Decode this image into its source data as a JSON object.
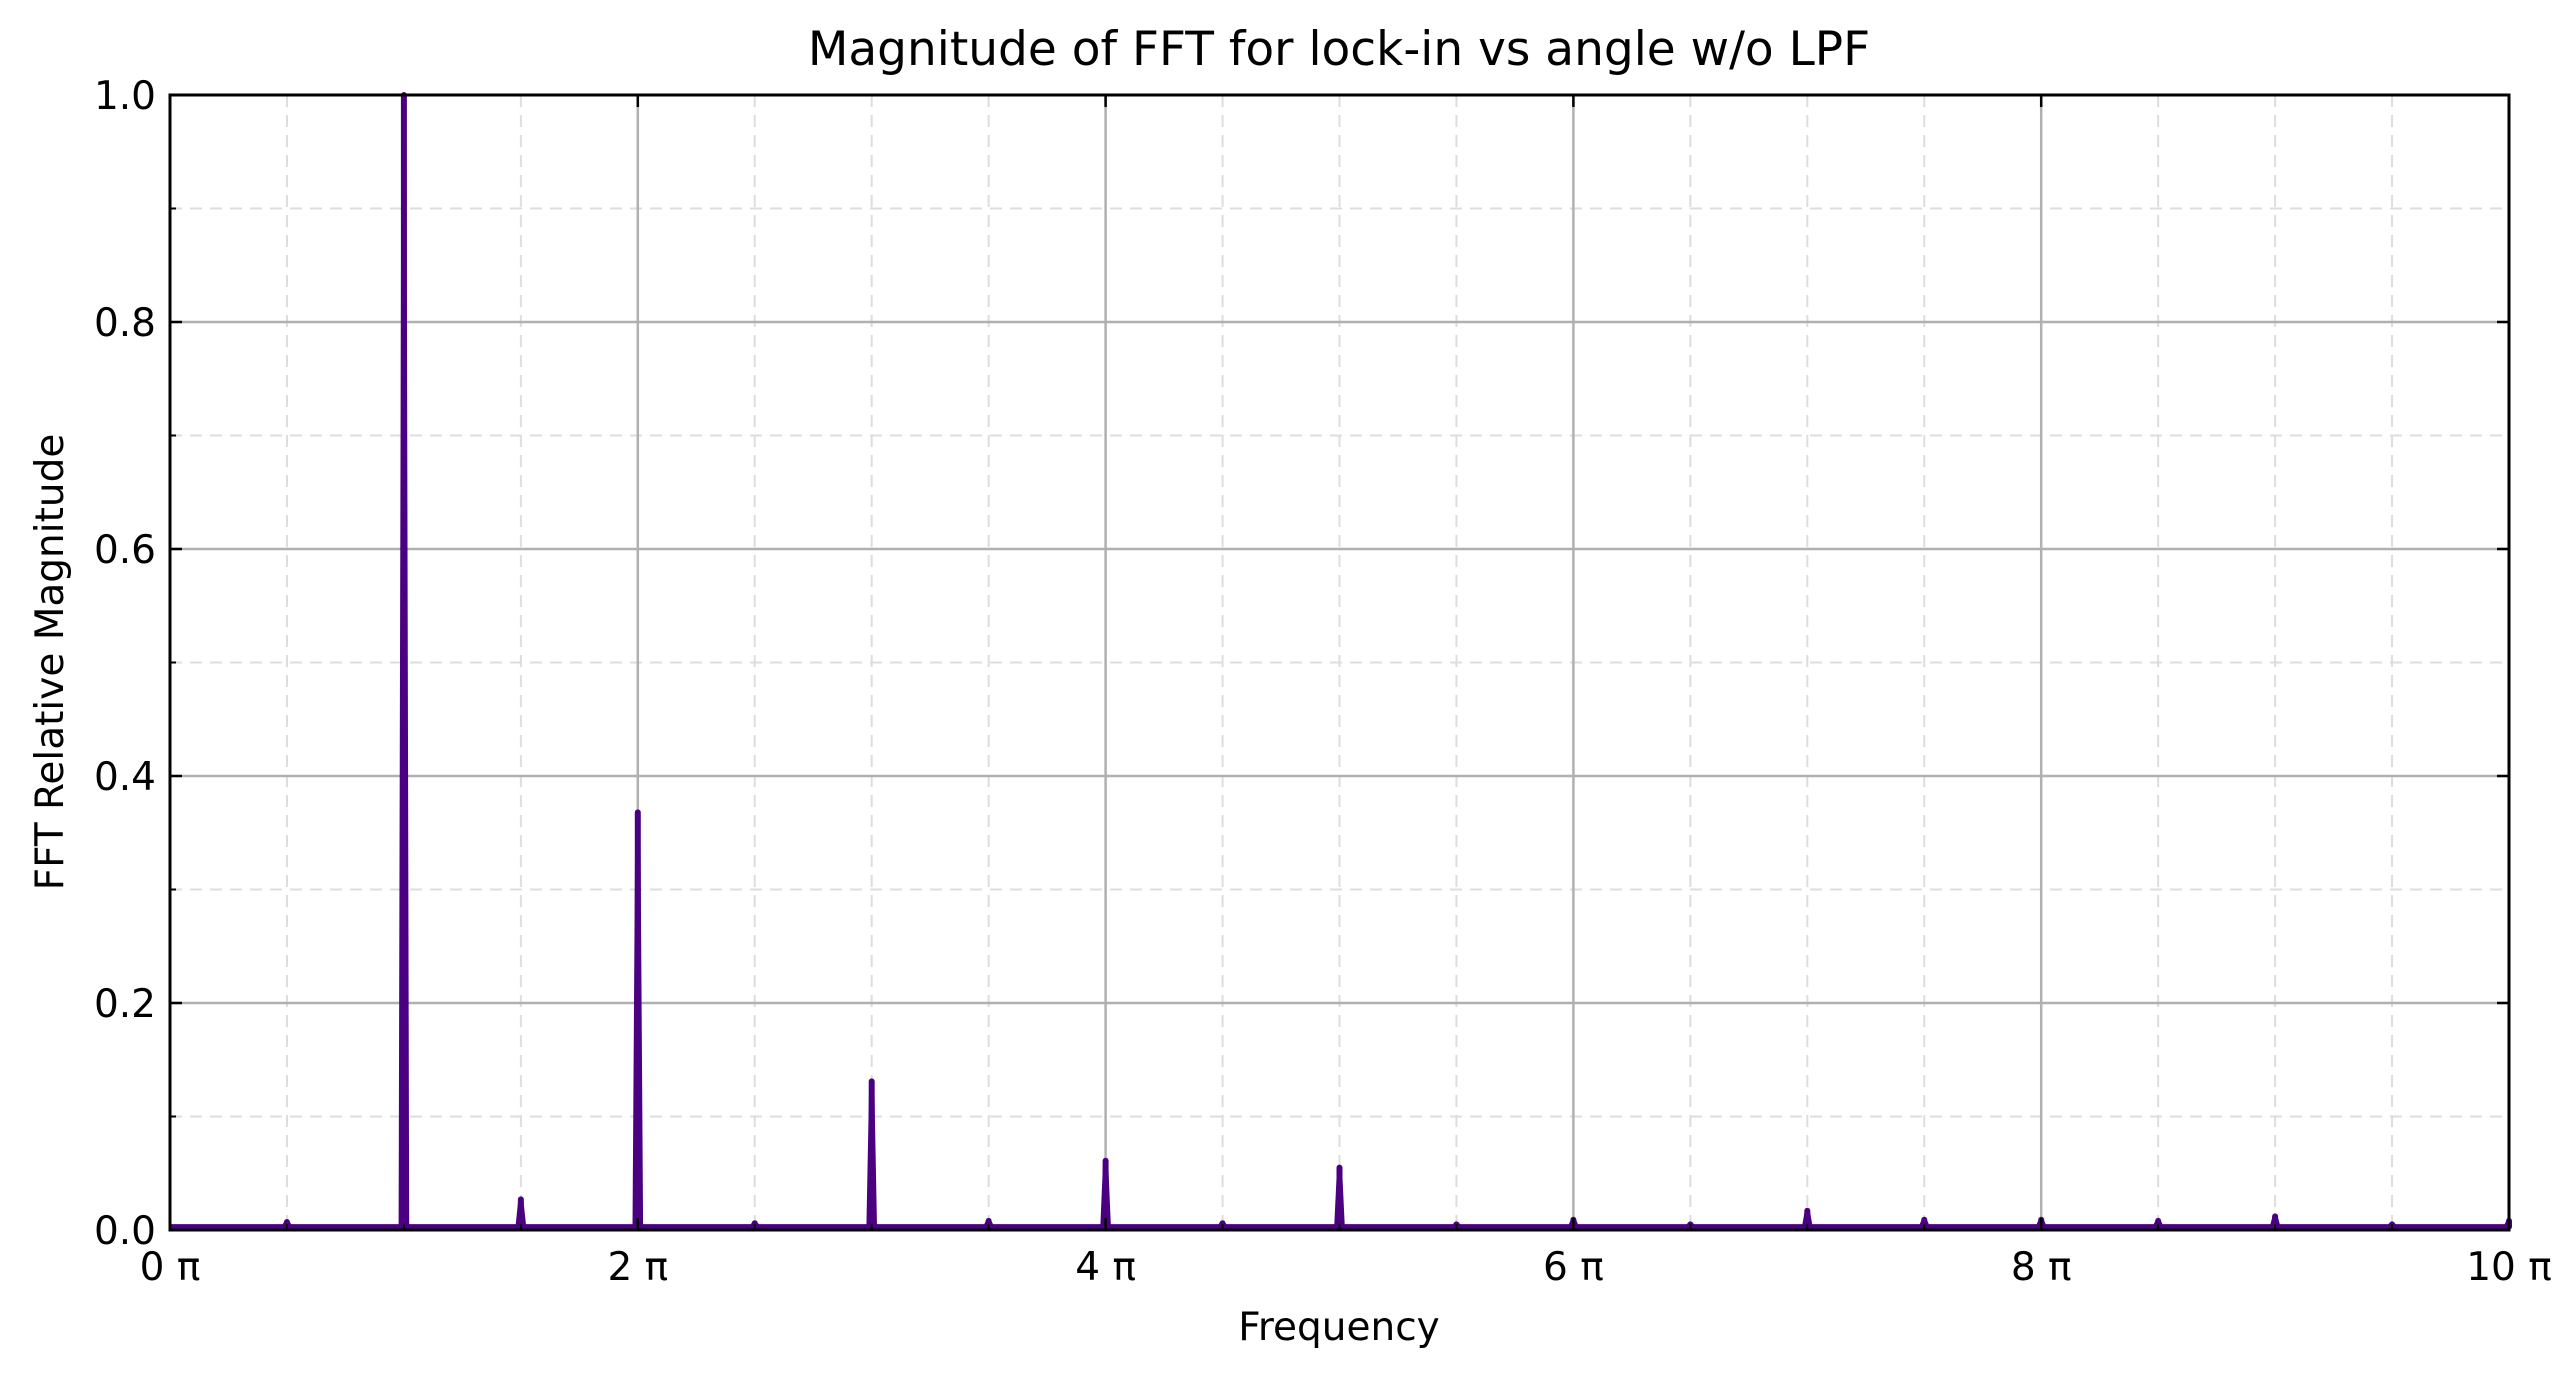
{
  "chart_data": {
    "type": "line",
    "title": "Magnitude of FFT for lock-in vs angle w/o LPF",
    "xlabel": "Frequency",
    "ylabel": "FFT Relative Magnitude",
    "x_unit": "π",
    "xlim": [
      0,
      10
    ],
    "ylim": [
      0,
      1.0
    ],
    "x_major_ticks": [
      0,
      2,
      4,
      6,
      8,
      10
    ],
    "x_tick_labels": [
      "0 π",
      "2 π",
      "4 π",
      "6 π",
      "8 π",
      "10 π"
    ],
    "x_minor_ticks": [
      0.5,
      1,
      1.5,
      2.5,
      3,
      3.5,
      4.5,
      5,
      5.5,
      6.5,
      7,
      7.5,
      8.5,
      9,
      9.5
    ],
    "y_major_ticks": [
      0,
      0.2,
      0.4,
      0.6,
      0.8,
      1.0
    ],
    "y_tick_labels": [
      "0.0",
      "0.2",
      "0.4",
      "0.6",
      "0.8",
      "1.0"
    ],
    "y_minor_ticks": [
      0.1,
      0.3,
      0.5,
      0.7,
      0.9
    ],
    "grid": true,
    "line_color": "#4b0082",
    "baseline": 0.003,
    "series": [
      {
        "peaks": [
          {
            "x": 0.5,
            "y": 0.007
          },
          {
            "x": 1.0,
            "y": 1.0
          },
          {
            "x": 1.5,
            "y": 0.027
          },
          {
            "x": 2.0,
            "y": 0.368
          },
          {
            "x": 2.5,
            "y": 0.006
          },
          {
            "x": 3.0,
            "y": 0.131
          },
          {
            "x": 3.5,
            "y": 0.008
          },
          {
            "x": 4.0,
            "y": 0.061
          },
          {
            "x": 4.5,
            "y": 0.006
          },
          {
            "x": 5.0,
            "y": 0.055
          },
          {
            "x": 5.5,
            "y": 0.005
          },
          {
            "x": 6.0,
            "y": 0.009
          },
          {
            "x": 6.5,
            "y": 0.005
          },
          {
            "x": 7.0,
            "y": 0.017
          },
          {
            "x": 7.5,
            "y": 0.009
          },
          {
            "x": 8.0,
            "y": 0.009
          },
          {
            "x": 8.5,
            "y": 0.008
          },
          {
            "x": 9.0,
            "y": 0.012
          },
          {
            "x": 9.5,
            "y": 0.005
          },
          {
            "x": 10.0,
            "y": 0.008
          }
        ]
      }
    ]
  }
}
